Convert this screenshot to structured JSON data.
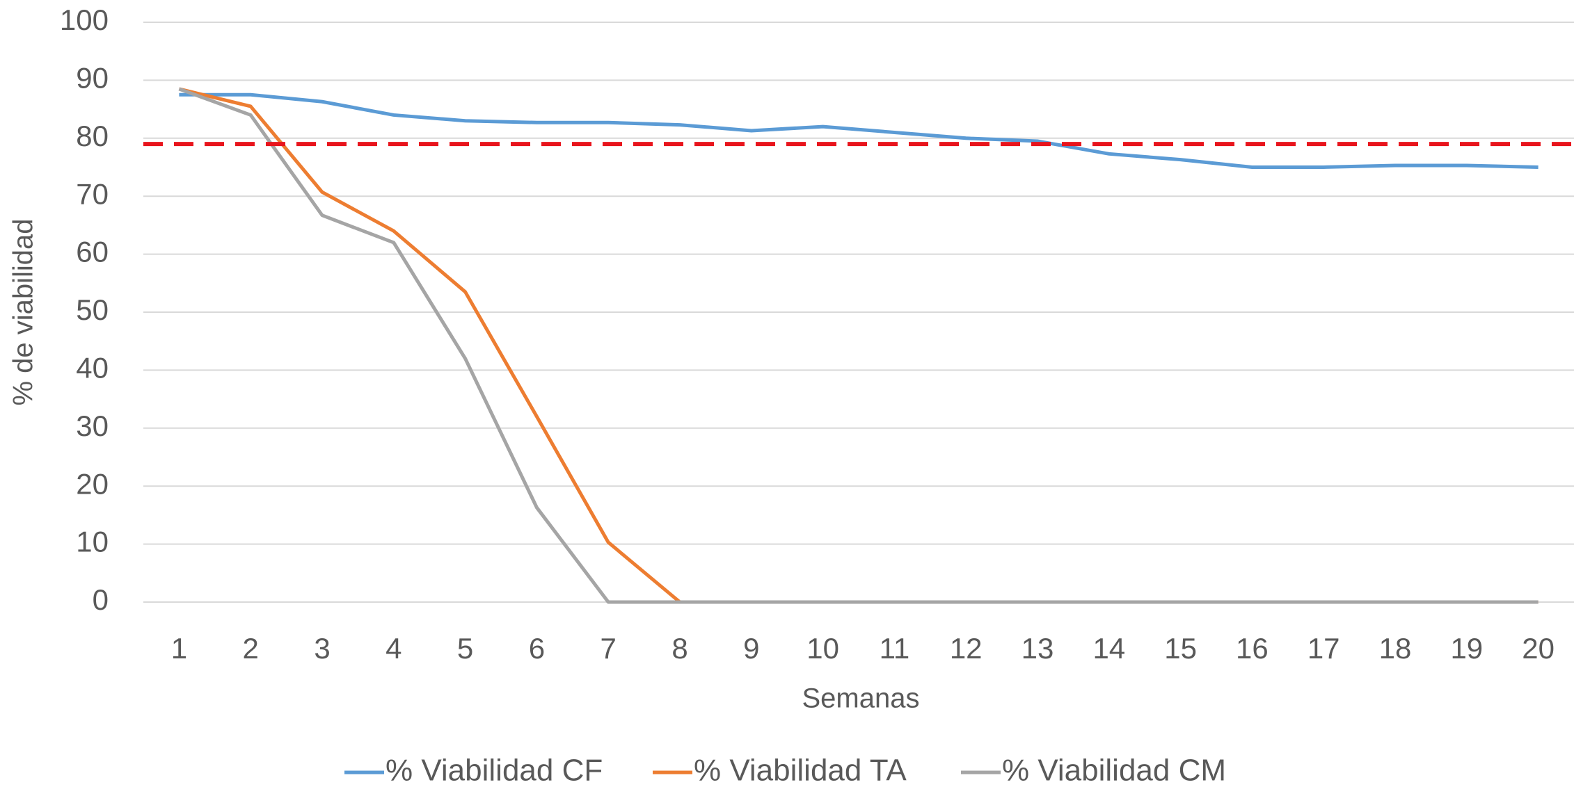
{
  "chart_data": {
    "type": "line",
    "xlabel": "Semanas",
    "ylabel": "% de viabilidad",
    "categories": [
      "1",
      "2",
      "3",
      "4",
      "5",
      "6",
      "7",
      "8",
      "9",
      "10",
      "11",
      "12",
      "13",
      "14",
      "15",
      "16",
      "17",
      "18",
      "19",
      "20"
    ],
    "series": [
      {
        "name": "% Viabilidad CF",
        "color": "#5b9bd5",
        "values": [
          87.5,
          87.5,
          86.3,
          84,
          83,
          82.7,
          82.7,
          82.3,
          81.3,
          82,
          81,
          80,
          79.5,
          77.3,
          76.3,
          75,
          75,
          75.3,
          75.3,
          75
        ]
      },
      {
        "name": "% Viabilidad TA",
        "color": "#ed7d31",
        "values": [
          88.5,
          85.5,
          70.7,
          64,
          53.5,
          32,
          10.3,
          0,
          0,
          0,
          0,
          0,
          0,
          0,
          0,
          0,
          0,
          0,
          0,
          0
        ]
      },
      {
        "name": "% Viabilidad CM",
        "color": "#a5a5a5",
        "values": [
          88.5,
          84,
          66.7,
          62,
          42,
          16.3,
          0,
          0,
          0,
          0,
          0,
          0,
          0,
          0,
          0,
          0,
          0,
          0,
          0,
          0
        ]
      }
    ],
    "reference_line": {
      "value": 79,
      "color": "#e8141c"
    },
    "ylim": [
      0,
      100
    ],
    "yticks": [
      0,
      10,
      20,
      30,
      40,
      50,
      60,
      70,
      80,
      90,
      100
    ],
    "grid": true,
    "legend": "bottom"
  }
}
